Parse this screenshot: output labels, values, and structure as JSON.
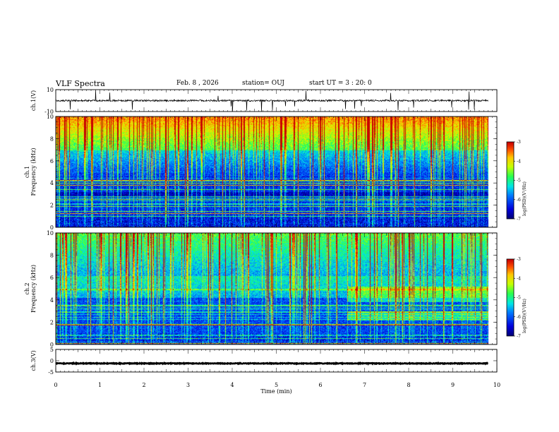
{
  "header": {
    "title": "VLF Spectra",
    "date": "Feb. 8 , 2026",
    "station": "station= OUJ",
    "start_ut": "start  UT =  3 : 20: 0"
  },
  "chart_data": [
    {
      "type": "line",
      "name": "ch1-waveform",
      "ylabel": "ch.1(V)",
      "ylim": [
        -10,
        10
      ],
      "yticks": [
        "10",
        "-10"
      ],
      "baseline": 0,
      "xlim": [
        0,
        10
      ],
      "data_extent_min": 9.8
    },
    {
      "type": "heatmap",
      "name": "ch1-spectrogram",
      "ylabel": "ch.1\nFrequency (kHz)",
      "ylim": [
        0,
        10
      ],
      "yticks": [
        "0",
        "2",
        "4",
        "6",
        "8",
        "10"
      ],
      "xlim": [
        0,
        9.8
      ],
      "colorbar": {
        "label": "log(PSD)(V²/Hz)",
        "ticks": [
          "-3",
          "-4",
          "-5",
          "-6",
          "-7"
        ],
        "range": [
          -7,
          -3
        ]
      }
    },
    {
      "type": "heatmap",
      "name": "ch2-spectrogram",
      "ylabel": "ch.2\nFrequency (kHz)",
      "ylim": [
        0,
        10
      ],
      "yticks": [
        "0",
        "2",
        "4",
        "6",
        "8",
        "10"
      ],
      "xlim": [
        0,
        9.8
      ],
      "regime_change_min": 6.6,
      "colorbar": {
        "label": "log(PSD)(V²/Hz)",
        "ticks": [
          "-3",
          "-4",
          "-5",
          "-6",
          "-7"
        ],
        "range": [
          -7,
          -3
        ]
      }
    },
    {
      "type": "line",
      "name": "ch3-waveform",
      "ylabel": "ch.3(V)",
      "ylim": [
        -5,
        5
      ],
      "yticks": [
        "5",
        "0",
        "-5"
      ],
      "baseline": -1.2,
      "xlim": [
        0,
        10
      ]
    }
  ],
  "x_axis": {
    "label": "Time  (min)",
    "ticks": [
      "0",
      "1",
      "2",
      "3",
      "4",
      "5",
      "6",
      "7",
      "8",
      "9",
      "10"
    ],
    "range": [
      0,
      10
    ]
  }
}
